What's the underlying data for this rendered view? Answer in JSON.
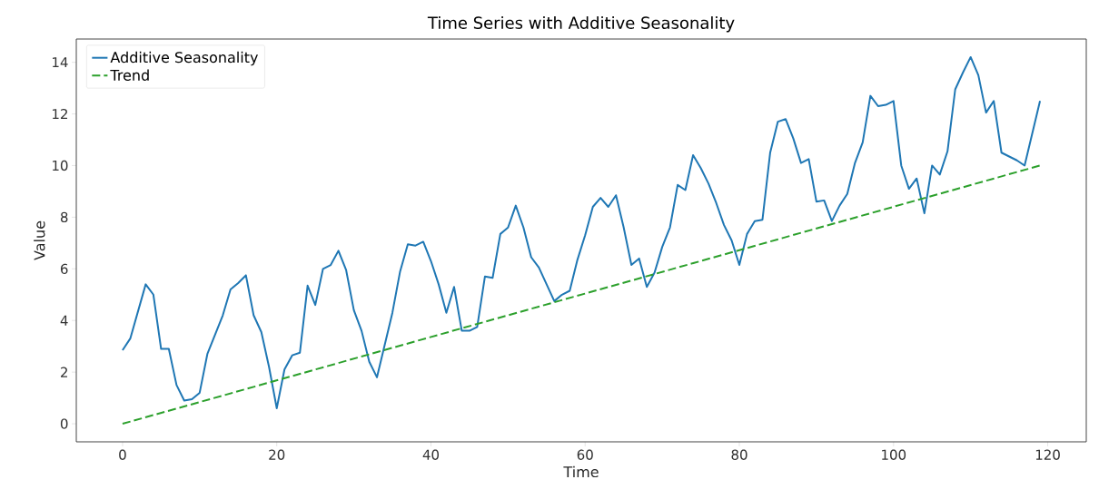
{
  "chart_data": {
    "type": "line",
    "title": "Time Series with Additive Seasonality",
    "xlabel": "Time",
    "ylabel": "Value",
    "xlim": [
      -6,
      125
    ],
    "ylim": [
      -0.7,
      14.9
    ],
    "xticks": [
      0,
      20,
      40,
      60,
      80,
      100,
      120
    ],
    "yticks": [
      0,
      2,
      4,
      6,
      8,
      10,
      12,
      14
    ],
    "legend": "top left",
    "series": [
      {
        "name": "Additive Seasonality",
        "color": "#1f77b4",
        "line_style": "solid",
        "x": [
          0,
          1,
          3,
          4,
          5,
          6,
          7,
          8,
          9,
          10,
          11,
          13,
          14,
          15,
          16,
          17,
          18,
          19,
          20,
          21,
          22,
          23,
          24,
          25,
          26,
          27,
          28,
          29,
          30,
          31,
          32,
          33,
          35,
          36,
          37,
          38,
          39,
          40,
          41,
          42,
          43,
          44,
          45,
          46,
          47,
          48,
          49,
          50,
          51,
          52,
          53,
          54,
          55,
          56,
          57,
          58,
          59,
          60,
          61,
          62,
          63,
          64,
          65,
          66,
          67,
          68,
          69,
          70,
          71,
          72,
          73,
          74,
          75,
          76,
          77,
          78,
          79,
          80,
          81,
          82,
          83,
          84,
          85,
          86,
          87,
          88,
          89,
          90,
          91,
          92,
          93,
          94,
          95,
          96,
          97,
          98,
          99,
          100,
          101,
          102,
          103,
          104,
          105,
          106,
          107,
          108,
          109,
          110,
          111,
          112,
          113,
          114,
          116,
          117,
          119
        ],
        "values": [
          2.85,
          3.3,
          5.4,
          5.0,
          2.9,
          2.9,
          1.5,
          0.9,
          0.95,
          1.2,
          2.7,
          4.2,
          5.2,
          5.45,
          5.75,
          4.2,
          3.55,
          2.2,
          0.6,
          2.1,
          2.65,
          2.75,
          5.35,
          4.6,
          6.0,
          6.15,
          6.7,
          5.95,
          4.4,
          3.6,
          2.4,
          1.8,
          4.3,
          5.9,
          6.95,
          6.9,
          7.05,
          6.3,
          5.4,
          4.3,
          5.3,
          3.6,
          3.6,
          3.75,
          5.7,
          5.65,
          7.35,
          7.6,
          8.45,
          7.6,
          6.45,
          6.05,
          5.4,
          4.75,
          5.0,
          5.15,
          6.35,
          7.3,
          8.4,
          8.75,
          8.4,
          8.85,
          7.6,
          6.15,
          6.4,
          5.3,
          5.85,
          6.85,
          7.6,
          9.25,
          9.05,
          10.4,
          9.9,
          9.3,
          8.55,
          7.7,
          7.1,
          6.15,
          7.35,
          7.85,
          7.9,
          10.5,
          11.7,
          11.8,
          11.05,
          10.1,
          10.25,
          8.6,
          8.65,
          7.85,
          8.45,
          8.9,
          10.1,
          10.9,
          12.7,
          12.3,
          12.35,
          12.5,
          10.0,
          9.1,
          9.5,
          8.15,
          10.0,
          9.65,
          10.55,
          12.95,
          13.6,
          14.2,
          13.5,
          12.05,
          12.5,
          10.5,
          10.2,
          10.0,
          12.5
        ]
      },
      {
        "name": "Trend",
        "color": "#2ca02c",
        "line_style": "dashed",
        "x": [
          0,
          119
        ],
        "values": [
          0,
          10
        ]
      }
    ]
  }
}
